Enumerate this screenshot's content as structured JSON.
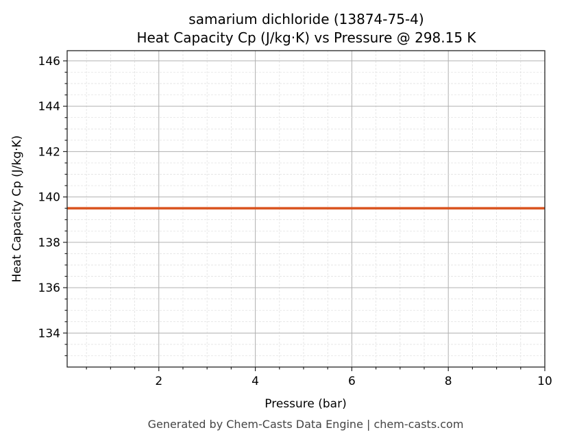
{
  "chart_data": {
    "type": "line",
    "title": "samarium dichloride (13874-75-4)",
    "subtitle": "Heat Capacity Cp (J/kg·K) vs Pressure @ 298.15 K",
    "xlabel": "Pressure (bar)",
    "ylabel": "Heat Capacity Cp (J/kg·K)",
    "xlim": [
      0.1,
      10
    ],
    "ylim": [
      132.5,
      146.45
    ],
    "xticks": [
      2,
      4,
      6,
      8,
      10
    ],
    "yticks": [
      134,
      136,
      138,
      140,
      142,
      144,
      146
    ],
    "grid": true,
    "series": [
      {
        "x": [
          0.1,
          10
        ],
        "y": [
          139.5,
          139.5
        ],
        "color": "#d9531e"
      }
    ]
  },
  "footer": "Generated by Chem-Casts Data Engine | chem-casts.com"
}
